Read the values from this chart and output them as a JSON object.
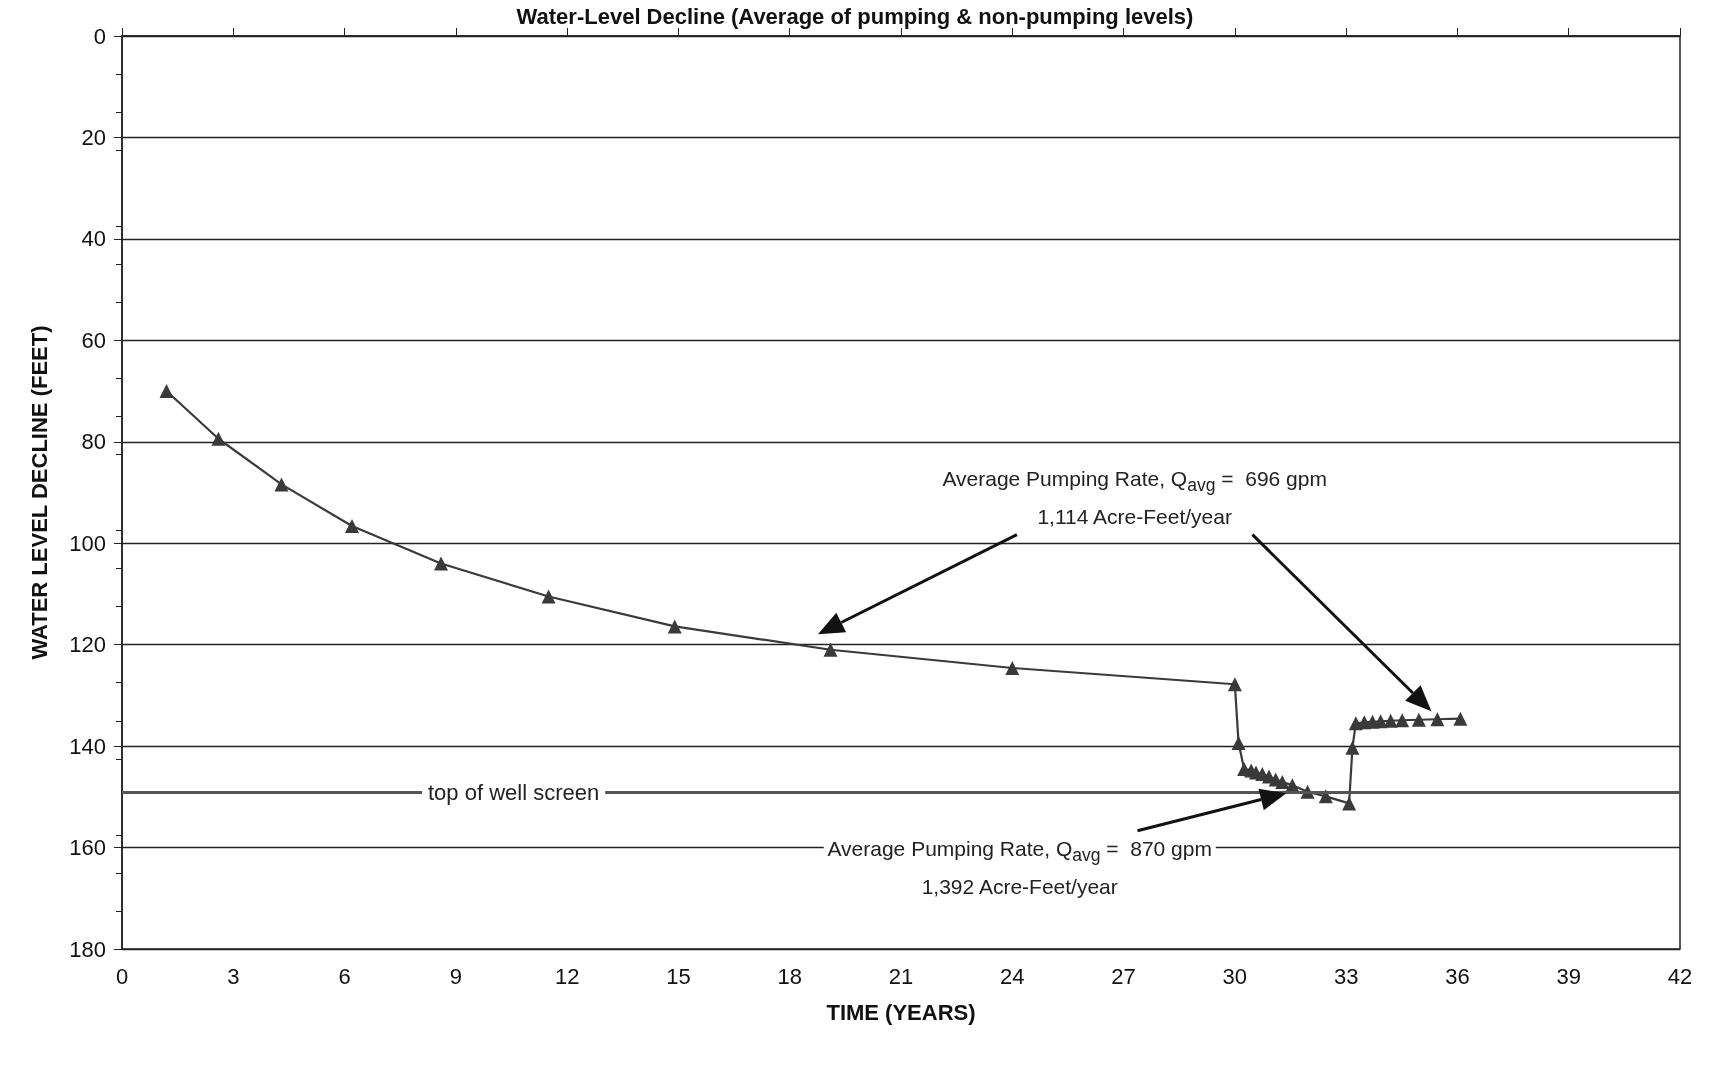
{
  "chart_data": {
    "type": "line",
    "title": "Water-Level Decline (Average of pumping & non-pumping levels)",
    "xlabel": "TIME (YEARS)",
    "ylabel": "WATER LEVEL DECLINE (FEET)",
    "series": [
      {
        "color": "#3a3a3a",
        "x": [
          1.2,
          2.6,
          4.3,
          6.2,
          8.6,
          11.5,
          14.9,
          19.1,
          24.0,
          30.0,
          30.1,
          30.25,
          30.44,
          30.57,
          30.74,
          30.92,
          31.1,
          31.28,
          31.55,
          31.96,
          32.45,
          33.08,
          33.17,
          33.26,
          33.49,
          33.71,
          33.93,
          34.2,
          34.51,
          34.96,
          35.46,
          36.08
        ],
        "values": [
          70,
          79.4,
          88.4,
          96.6,
          104,
          110.5,
          116.4,
          121,
          124.6,
          127.8,
          139.4,
          144.5,
          144.8,
          145.2,
          145.5,
          146,
          146.6,
          147.1,
          147.7,
          149,
          149.9,
          151.3,
          140.3,
          135.5,
          135.3,
          135.2,
          135.1,
          135,
          134.9,
          134.8,
          134.7,
          134.6
        ]
      }
    ],
    "xlim": [
      0,
      42
    ],
    "xticks": [
      0,
      3,
      6,
      9,
      12,
      15,
      18,
      21,
      24,
      27,
      30,
      33,
      36,
      39,
      42
    ],
    "ylim": [
      180,
      0
    ],
    "yticks": [
      0,
      20,
      40,
      60,
      80,
      100,
      120,
      140,
      160,
      180
    ],
    "grid": "y",
    "marker": "triangle",
    "line_style": "solid",
    "ref_lines": [
      {
        "axis": "y",
        "value": 149,
        "label": "top of well screen",
        "color": "#555555"
      }
    ],
    "annotations": [
      "Average Pumping Rate, Q$_{avg}$ =  696 gpm\n1,114 Acre-Feet/year",
      "Average Pumping Rate, Q$_{avg}$ =  870 gpm\n1,392 Acre-Feet/year"
    ]
  }
}
